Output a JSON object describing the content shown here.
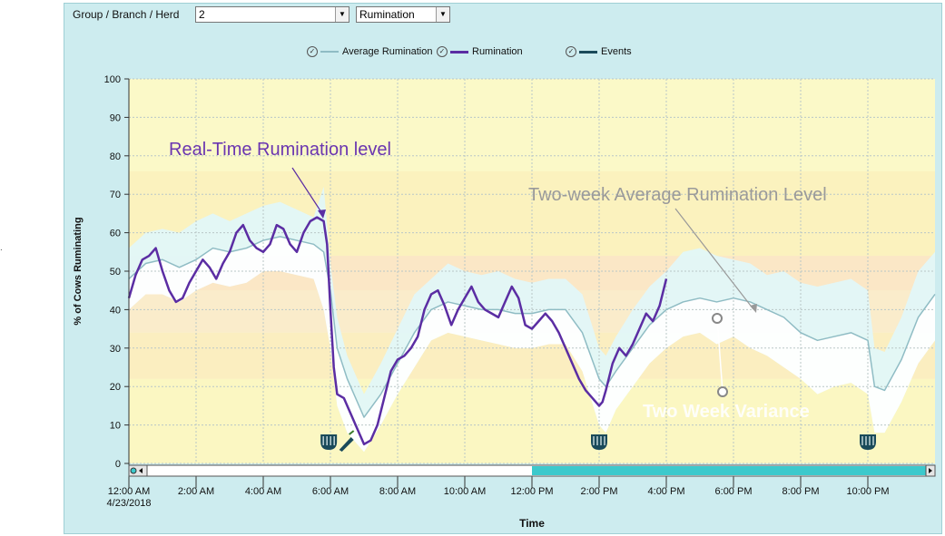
{
  "toolbar": {
    "label": "Group / Branch / Herd",
    "group_value": "2",
    "metric_value": "Rumination"
  },
  "legend": [
    {
      "label": "Average Rumination",
      "color": "#8fbcc4"
    },
    {
      "label": "Rumination",
      "color": "#5b2da3"
    },
    {
      "label": "Events",
      "color": "#1a4a5a"
    }
  ],
  "left_mark": ".",
  "chart_data": {
    "type": "line",
    "ylabel": "% of Cows Ruminating",
    "xlabel": "Time",
    "ylim": [
      0,
      100
    ],
    "yticks": [
      0,
      10,
      20,
      30,
      40,
      50,
      60,
      70,
      80,
      90,
      100
    ],
    "x_unit": "hours since 12:00 AM 4/23/2018",
    "xlim": [
      0,
      24
    ],
    "xticks": [
      {
        "x": 0,
        "label": "12:00 AM",
        "sub": "4/23/2018"
      },
      {
        "x": 2,
        "label": "2:00 AM"
      },
      {
        "x": 4,
        "label": "4:00 AM"
      },
      {
        "x": 6,
        "label": "6:00 AM"
      },
      {
        "x": 8,
        "label": "8:00 AM"
      },
      {
        "x": 10,
        "label": "10:00 AM"
      },
      {
        "x": 12,
        "label": "12:00 PM"
      },
      {
        "x": 14,
        "label": "2:00 PM"
      },
      {
        "x": 16,
        "label": "4:00 PM"
      },
      {
        "x": 18,
        "label": "6:00 PM"
      },
      {
        "x": 20,
        "label": "8:00 PM"
      },
      {
        "x": 22,
        "label": "10:00 PM"
      }
    ],
    "grid": true,
    "bands": [
      {
        "y0": 0,
        "y1": 22,
        "color": "#fbf7c2"
      },
      {
        "y0": 22,
        "y1": 34,
        "color": "#fbeec0"
      },
      {
        "y0": 34,
        "y1": 45,
        "color": "#faeccb"
      },
      {
        "y0": 45,
        "y1": 54,
        "color": "#fbe7c6"
      },
      {
        "y0": 54,
        "y1": 76,
        "color": "#fbf2be"
      },
      {
        "y0": 76,
        "y1": 100,
        "color": "#fbf9c8"
      }
    ],
    "series": [
      {
        "name": "Rumination",
        "color": "#5b2da3",
        "x": [
          0,
          0.2,
          0.4,
          0.6,
          0.8,
          1.0,
          1.2,
          1.4,
          1.6,
          1.8,
          2.0,
          2.2,
          2.4,
          2.6,
          2.8,
          3.0,
          3.2,
          3.4,
          3.6,
          3.8,
          4.0,
          4.2,
          4.4,
          4.6,
          4.8,
          5.0,
          5.2,
          5.4,
          5.6,
          5.8,
          5.9,
          6.0,
          6.1,
          6.2,
          6.4,
          6.6,
          6.8,
          7.0,
          7.2,
          7.4,
          7.6,
          7.8,
          8.0,
          8.2,
          8.4,
          8.6,
          8.8,
          9.0,
          9.2,
          9.4,
          9.6,
          9.8,
          10.0,
          10.2,
          10.4,
          10.6,
          10.8,
          11.0,
          11.2,
          11.4,
          11.6,
          11.8,
          12.0,
          12.2,
          12.4,
          12.6,
          12.8,
          13.0,
          13.2,
          13.4,
          13.6,
          13.8,
          14.0,
          14.1,
          14.2,
          14.4,
          14.6,
          14.8,
          15.0,
          15.2,
          15.4,
          15.6,
          15.8,
          16.0
        ],
        "y": [
          43,
          49,
          53,
          54,
          56,
          50,
          45,
          42,
          43,
          47,
          50,
          53,
          51,
          48,
          52,
          55,
          60,
          62,
          58,
          56,
          55,
          57,
          62,
          61,
          57,
          55,
          60,
          63,
          64,
          63,
          57,
          40,
          25,
          18,
          17,
          13,
          9,
          5,
          6,
          10,
          17,
          24,
          27,
          28,
          30,
          33,
          40,
          44,
          45,
          41,
          36,
          40,
          43,
          46,
          42,
          40,
          39,
          38,
          42,
          46,
          43,
          36,
          35,
          37,
          39,
          37,
          34,
          30,
          26,
          22,
          19,
          17,
          15,
          16,
          19,
          26,
          30,
          28,
          31,
          35,
          39,
          37,
          41,
          48
        ]
      },
      {
        "name": "Average Rumination",
        "color": "#8fbcc4",
        "x": [
          0,
          0.5,
          1.0,
          1.5,
          2.0,
          2.5,
          3.0,
          3.5,
          4.0,
          4.5,
          5.0,
          5.5,
          5.8,
          6.0,
          6.2,
          6.5,
          7.0,
          7.5,
          8.0,
          8.5,
          9.0,
          9.5,
          10.0,
          10.5,
          11.0,
          11.5,
          12.0,
          12.5,
          13.0,
          13.5,
          14.0,
          14.2,
          14.5,
          15.0,
          15.5,
          16.0,
          16.5,
          17.0,
          17.5,
          18.0,
          18.5,
          19.0,
          19.5,
          20.0,
          20.5,
          21.0,
          21.5,
          22.0,
          22.2,
          22.5,
          23.0,
          23.5,
          24.0
        ],
        "y": [
          48,
          52,
          53,
          51,
          53,
          56,
          55,
          56,
          58,
          59,
          58,
          57,
          55,
          45,
          30,
          22,
          12,
          18,
          26,
          34,
          40,
          42,
          41,
          40,
          40,
          39,
          39,
          40,
          40,
          34,
          22,
          20,
          24,
          30,
          36,
          40,
          42,
          43,
          42,
          43,
          42,
          40,
          38,
          34,
          32,
          33,
          34,
          32,
          20,
          19,
          27,
          38,
          44
        ]
      }
    ],
    "variance_band": {
      "x": [
        0,
        0.5,
        1.0,
        1.5,
        2.0,
        2.5,
        3.0,
        3.5,
        4.0,
        4.5,
        5.0,
        5.5,
        5.8,
        6.0,
        6.2,
        6.5,
        7.0,
        7.5,
        8.0,
        8.5,
        9.0,
        9.5,
        10.0,
        10.5,
        11.0,
        11.5,
        12.0,
        12.5,
        13.0,
        13.5,
        14.0,
        14.2,
        14.5,
        15.0,
        15.5,
        16.0,
        16.5,
        17.0,
        17.5,
        18.0,
        18.5,
        19.0,
        19.5,
        20.0,
        20.5,
        21.0,
        21.5,
        22.0,
        22.2,
        22.5,
        23.0,
        23.5,
        24.0
      ],
      "upper": [
        56,
        60,
        61,
        60,
        63,
        65,
        63,
        65,
        67,
        68,
        66,
        64,
        72,
        52,
        38,
        28,
        18,
        26,
        35,
        44,
        48,
        52,
        50,
        49,
        50,
        48,
        47,
        48,
        48,
        44,
        30,
        28,
        33,
        40,
        46,
        50,
        55,
        56,
        54,
        53,
        52,
        49,
        50,
        47,
        46,
        47,
        48,
        45,
        30,
        29,
        38,
        50,
        55
      ],
      "lower": [
        40,
        44,
        44,
        42,
        45,
        47,
        46,
        47,
        50,
        50,
        49,
        48,
        40,
        30,
        15,
        8,
        3,
        10,
        18,
        25,
        32,
        34,
        33,
        32,
        31,
        30,
        30,
        31,
        31,
        24,
        10,
        8,
        14,
        20,
        26,
        30,
        33,
        34,
        31,
        33,
        30,
        28,
        25,
        22,
        18,
        20,
        21,
        18,
        8,
        8,
        16,
        26,
        32
      ]
    },
    "events": [
      {
        "x": 5.95,
        "type": "feeding"
      },
      {
        "x": 6.45,
        "type": "treatment"
      },
      {
        "x": 14.0,
        "type": "feeding"
      },
      {
        "x": 22.0,
        "type": "feeding"
      }
    ],
    "annotations": [
      {
        "text": "Real-Time Rumination level",
        "color": "#6a35b0"
      },
      {
        "text": "Two-week Average Rumination Level",
        "color": "#9a9a9a"
      },
      {
        "text": "Two Week Variance",
        "color": "#ffffff"
      }
    ],
    "scroll_position": 0.5
  }
}
